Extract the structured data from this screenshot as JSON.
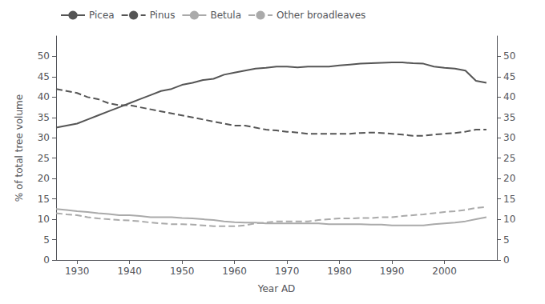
{
  "chart_data": {
    "type": "line",
    "xlabel": "Year AD",
    "ylabel": "% of total tree volume",
    "x": [
      1926,
      1928,
      1930,
      1932,
      1934,
      1936,
      1938,
      1940,
      1942,
      1944,
      1946,
      1948,
      1950,
      1952,
      1954,
      1956,
      1958,
      1960,
      1962,
      1964,
      1966,
      1968,
      1970,
      1972,
      1974,
      1976,
      1978,
      1980,
      1982,
      1984,
      1986,
      1988,
      1990,
      1992,
      1994,
      1996,
      1998,
      2000,
      2002,
      2004,
      2006,
      2008
    ],
    "series": [
      {
        "name": "Picea",
        "color": "#555555",
        "line_style": "solid",
        "values": [
          32.5,
          33.0,
          33.5,
          34.5,
          35.5,
          36.5,
          37.5,
          38.5,
          39.5,
          40.5,
          41.5,
          42.0,
          43.0,
          43.5,
          44.2,
          44.5,
          45.5,
          46.0,
          46.5,
          47.0,
          47.2,
          47.5,
          47.5,
          47.3,
          47.5,
          47.5,
          47.5,
          47.8,
          48.0,
          48.2,
          48.3,
          48.4,
          48.5,
          48.5,
          48.3,
          48.2,
          47.5,
          47.2,
          47.0,
          46.5,
          44.0,
          43.5
        ]
      },
      {
        "name": "Pinus",
        "color": "#555555",
        "line_style": "dashed",
        "values": [
          42.0,
          41.5,
          41.0,
          40.0,
          39.5,
          38.5,
          38.0,
          38.0,
          37.5,
          37.0,
          36.5,
          36.0,
          35.5,
          35.0,
          34.5,
          34.0,
          33.5,
          33.0,
          33.0,
          32.5,
          32.0,
          31.8,
          31.5,
          31.3,
          31.0,
          31.0,
          31.0,
          31.0,
          31.0,
          31.2,
          31.3,
          31.2,
          31.0,
          30.8,
          30.5,
          30.5,
          30.8,
          31.0,
          31.2,
          31.5,
          32.0,
          32.0
        ]
      },
      {
        "name": "Betula",
        "color": "#aaaaaa",
        "line_style": "solid",
        "values": [
          12.5,
          12.3,
          12.0,
          11.8,
          11.5,
          11.3,
          11.0,
          11.0,
          10.8,
          10.5,
          10.5,
          10.5,
          10.3,
          10.2,
          10.0,
          9.8,
          9.5,
          9.3,
          9.2,
          9.2,
          9.0,
          9.0,
          9.0,
          9.0,
          9.0,
          9.0,
          8.8,
          8.8,
          8.8,
          8.8,
          8.7,
          8.7,
          8.5,
          8.5,
          8.5,
          8.5,
          8.8,
          9.0,
          9.2,
          9.5,
          10.0,
          10.5
        ]
      },
      {
        "name": "Other broadleaves",
        "color": "#aaaaaa",
        "line_style": "dashed",
        "values": [
          11.5,
          11.2,
          11.0,
          10.5,
          10.2,
          10.0,
          9.8,
          9.7,
          9.5,
          9.2,
          9.0,
          8.8,
          8.8,
          8.7,
          8.5,
          8.3,
          8.3,
          8.3,
          8.5,
          9.0,
          9.2,
          9.5,
          9.5,
          9.5,
          9.5,
          9.8,
          10.0,
          10.2,
          10.2,
          10.3,
          10.3,
          10.5,
          10.5,
          10.8,
          11.0,
          11.2,
          11.5,
          11.8,
          12.0,
          12.3,
          12.8,
          13.0
        ]
      }
    ],
    "xlim": [
      1926,
      2010
    ],
    "xticks": [
      1930,
      1940,
      1950,
      1960,
      1970,
      1980,
      1990,
      2000
    ],
    "ylim": [
      0,
      55
    ],
    "yticks": [
      0,
      5,
      10,
      15,
      20,
      25,
      30,
      35,
      40,
      45,
      50
    ],
    "y2lim": [
      0,
      55
    ],
    "y2ticks": [
      0,
      5,
      10,
      15,
      20,
      25,
      30,
      35,
      40,
      45,
      50
    ],
    "grid": false,
    "legend": "upper left"
  }
}
